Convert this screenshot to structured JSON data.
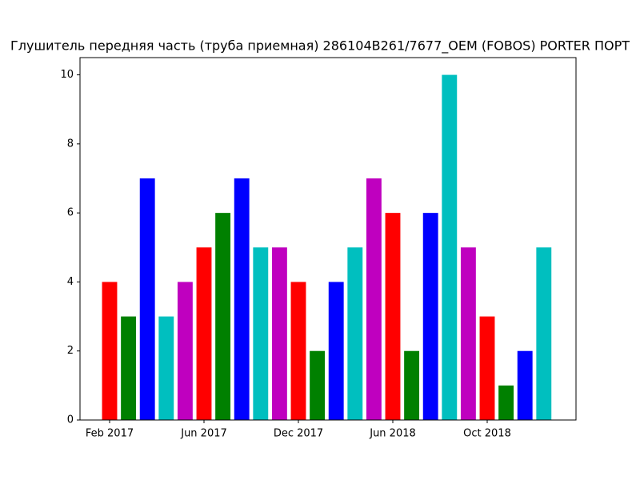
{
  "chart_data": {
    "type": "bar",
    "title": "Глушитель передняя часть (труба приемная) 286104B261/7677_OEM (FOBOS) PORTER ПОРТ",
    "categories": [
      "Feb 2017",
      null,
      null,
      null,
      null,
      "Jun 2017",
      null,
      null,
      null,
      null,
      "Dec 2017",
      null,
      null,
      null,
      null,
      "Jun 2018",
      null,
      null,
      null,
      null,
      "Oct 2018",
      null,
      null,
      null
    ],
    "values": [
      4,
      3,
      7,
      3,
      4,
      5,
      6,
      7,
      5,
      5,
      4,
      2,
      4,
      5,
      7,
      6,
      2,
      6,
      10,
      5,
      3,
      1,
      2,
      5
    ],
    "colors": [
      "#ff0000",
      "#008000",
      "#0000ff",
      "#00bfbf",
      "#bf00bf",
      "#ff0000",
      "#008000",
      "#0000ff",
      "#00bfbf",
      "#bf00bf",
      "#ff0000",
      "#008000",
      "#0000ff",
      "#00bfbf",
      "#bf00bf",
      "#ff0000",
      "#008000",
      "#0000ff",
      "#00bfbf",
      "#bf00bf",
      "#ff0000",
      "#008000",
      "#0000ff",
      "#00bfbf"
    ],
    "ylim": [
      0,
      10.5
    ],
    "yticks": [
      0,
      2,
      4,
      6,
      8,
      10
    ],
    "grid": false
  }
}
